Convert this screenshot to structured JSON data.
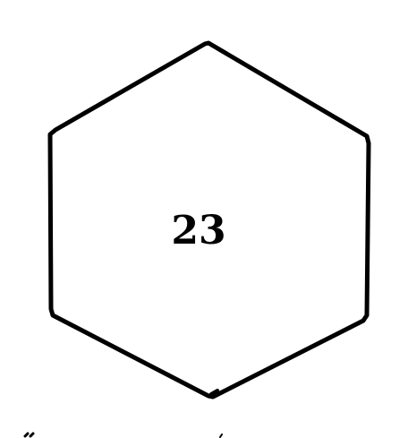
{
  "hexagon": {
    "label": "23",
    "stroke_color": "#000000",
    "fill_color": "#ffffff"
  },
  "background_color": "#ffffff"
}
